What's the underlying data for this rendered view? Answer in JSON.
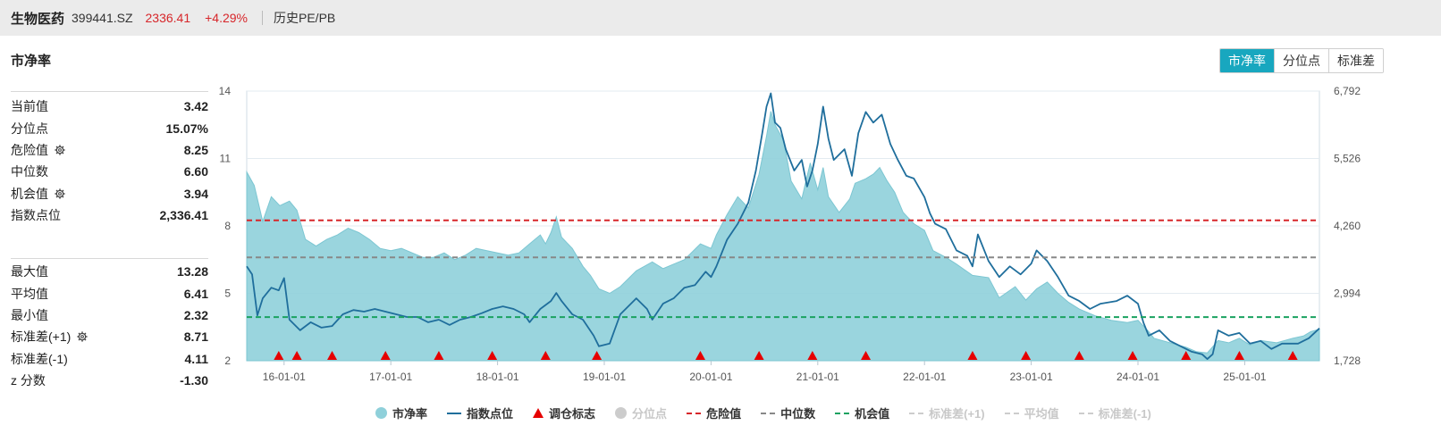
{
  "header": {
    "name": "生物医药",
    "code": "399441.SZ",
    "price": "2336.41",
    "change": "+4.29%",
    "history_label": "历史PE/PB"
  },
  "section_title": "市净率",
  "tabs": [
    {
      "label": "市净率",
      "active": true
    },
    {
      "label": "分位点",
      "active": false
    },
    {
      "label": "标准差",
      "active": false
    }
  ],
  "stats_top": [
    {
      "label": "当前值",
      "value": "3.42",
      "gear": false
    },
    {
      "label": "分位点",
      "value": "15.07%",
      "gear": false
    },
    {
      "label": "危险值",
      "value": "8.25",
      "gear": true
    },
    {
      "label": "中位数",
      "value": "6.60",
      "gear": false
    },
    {
      "label": "机会值",
      "value": "3.94",
      "gear": true
    },
    {
      "label": "指数点位",
      "value": "2,336.41",
      "gear": false
    }
  ],
  "stats_bottom": [
    {
      "label": "最大值",
      "value": "13.28",
      "gear": false
    },
    {
      "label": "平均值",
      "value": "6.41",
      "gear": false
    },
    {
      "label": "最小值",
      "value": "2.32",
      "gear": false
    },
    {
      "label": "标准差(+1)",
      "value": "8.71",
      "gear": true
    },
    {
      "label": "标准差(-1)",
      "value": "4.11",
      "gear": false
    },
    {
      "label": "z 分数",
      "value": "-1.30",
      "gear": false
    }
  ],
  "legend": [
    {
      "label": "市净率",
      "kind": "dot",
      "color": "#8fd0da",
      "off": false
    },
    {
      "label": "指数点位",
      "kind": "line",
      "color": "#1f6e9c",
      "off": false
    },
    {
      "label": "调仓标志",
      "kind": "tri",
      "color": "#e60000",
      "off": false
    },
    {
      "label": "分位点",
      "kind": "dot",
      "color": "#cccccc",
      "off": true
    },
    {
      "label": "危险值",
      "kind": "dash",
      "color": "#d7262a",
      "off": false
    },
    {
      "label": "中位数",
      "kind": "dash",
      "color": "#888888",
      "off": false
    },
    {
      "label": "机会值",
      "kind": "dash",
      "color": "#1aa260",
      "off": false
    },
    {
      "label": "标准差(+1)",
      "kind": "dash",
      "color": "#cccccc",
      "off": true
    },
    {
      "label": "平均值",
      "kind": "dash",
      "color": "#cccccc",
      "off": true
    },
    {
      "label": "标准差(-1)",
      "kind": "dash",
      "color": "#cccccc",
      "off": true
    }
  ],
  "chart_data": {
    "type": "area",
    "x_tick_labels": [
      "16-01-01",
      "17-01-01",
      "18-01-01",
      "19-01-01",
      "20-01-01",
      "21-01-01",
      "22-01-01",
      "23-01-01",
      "24-01-01",
      "25-01-01"
    ],
    "x_tick_years": [
      2016,
      2017,
      2018,
      2019,
      2020,
      2021,
      2022,
      2023,
      2024,
      2025
    ],
    "x_range": [
      2015.65,
      2025.7
    ],
    "left_axis": {
      "ticks": [
        "14",
        "11",
        "8",
        "5",
        "2"
      ],
      "values": [
        14,
        11,
        8,
        5,
        2
      ],
      "range": [
        2,
        14
      ]
    },
    "right_axis": {
      "ticks": [
        "6,792",
        "5,526",
        "4,260",
        "2,994",
        "1,728"
      ],
      "values": [
        6792,
        5526,
        4260,
        2994,
        1728
      ],
      "range": [
        1728,
        6792
      ]
    },
    "reference_lines": [
      {
        "name": "危险值",
        "value": 8.25,
        "color": "#d7262a"
      },
      {
        "name": "中位数",
        "value": 6.6,
        "color": "#888888"
      },
      {
        "name": "机会值",
        "value": 3.94,
        "color": "#1aa260"
      }
    ],
    "series": [
      {
        "name": "市净率",
        "kind": "area",
        "color": "#8fd0da",
        "axis": "left",
        "points": [
          [
            2015.65,
            10.4
          ],
          [
            2015.72,
            9.8
          ],
          [
            2015.8,
            8.2
          ],
          [
            2015.88,
            9.3
          ],
          [
            2015.96,
            8.9
          ],
          [
            2016.05,
            9.1
          ],
          [
            2016.12,
            8.7
          ],
          [
            2016.2,
            7.4
          ],
          [
            2016.3,
            7.1
          ],
          [
            2016.4,
            7.4
          ],
          [
            2016.5,
            7.6
          ],
          [
            2016.6,
            7.9
          ],
          [
            2016.7,
            7.7
          ],
          [
            2016.8,
            7.4
          ],
          [
            2016.9,
            7.0
          ],
          [
            2017.0,
            6.9
          ],
          [
            2017.1,
            7.0
          ],
          [
            2017.2,
            6.8
          ],
          [
            2017.3,
            6.6
          ],
          [
            2017.4,
            6.6
          ],
          [
            2017.5,
            6.8
          ],
          [
            2017.6,
            6.5
          ],
          [
            2017.7,
            6.7
          ],
          [
            2017.8,
            7.0
          ],
          [
            2017.9,
            6.9
          ],
          [
            2018.0,
            6.8
          ],
          [
            2018.1,
            6.7
          ],
          [
            2018.2,
            6.8
          ],
          [
            2018.3,
            7.2
          ],
          [
            2018.4,
            7.6
          ],
          [
            2018.45,
            7.2
          ],
          [
            2018.5,
            7.7
          ],
          [
            2018.55,
            8.4
          ],
          [
            2018.6,
            7.5
          ],
          [
            2018.7,
            7.0
          ],
          [
            2018.8,
            6.2
          ],
          [
            2018.87,
            5.8
          ],
          [
            2018.95,
            5.2
          ],
          [
            2019.05,
            5.0
          ],
          [
            2019.15,
            5.3
          ],
          [
            2019.3,
            6.0
          ],
          [
            2019.45,
            6.4
          ],
          [
            2019.55,
            6.1
          ],
          [
            2019.65,
            6.3
          ],
          [
            2019.75,
            6.5
          ],
          [
            2019.9,
            7.2
          ],
          [
            2020.0,
            7.0
          ],
          [
            2020.05,
            7.6
          ],
          [
            2020.15,
            8.5
          ],
          [
            2020.25,
            9.3
          ],
          [
            2020.35,
            8.8
          ],
          [
            2020.45,
            10.3
          ],
          [
            2020.52,
            12.0
          ],
          [
            2020.56,
            13.1
          ],
          [
            2020.6,
            12.5
          ],
          [
            2020.68,
            11.8
          ],
          [
            2020.75,
            10.0
          ],
          [
            2020.85,
            9.2
          ],
          [
            2020.93,
            10.8
          ],
          [
            2021.0,
            9.6
          ],
          [
            2021.05,
            10.6
          ],
          [
            2021.1,
            9.3
          ],
          [
            2021.2,
            8.6
          ],
          [
            2021.3,
            9.2
          ],
          [
            2021.35,
            9.9
          ],
          [
            2021.45,
            10.1
          ],
          [
            2021.52,
            10.3
          ],
          [
            2021.58,
            10.6
          ],
          [
            2021.65,
            10.0
          ],
          [
            2021.72,
            9.5
          ],
          [
            2021.8,
            8.6
          ],
          [
            2021.9,
            8.1
          ],
          [
            2022.0,
            7.8
          ],
          [
            2022.08,
            6.9
          ],
          [
            2022.2,
            6.6
          ],
          [
            2022.3,
            6.3
          ],
          [
            2022.45,
            5.8
          ],
          [
            2022.6,
            5.7
          ],
          [
            2022.7,
            4.8
          ],
          [
            2022.85,
            5.3
          ],
          [
            2022.95,
            4.7
          ],
          [
            2023.05,
            5.2
          ],
          [
            2023.15,
            5.5
          ],
          [
            2023.25,
            5.0
          ],
          [
            2023.35,
            4.6
          ],
          [
            2023.45,
            4.3
          ],
          [
            2023.6,
            4.0
          ],
          [
            2023.75,
            3.8
          ],
          [
            2023.9,
            3.7
          ],
          [
            2024.0,
            3.8
          ],
          [
            2024.1,
            3.3
          ],
          [
            2024.15,
            3.0
          ],
          [
            2024.3,
            2.8
          ],
          [
            2024.45,
            2.6
          ],
          [
            2024.55,
            2.4
          ],
          [
            2024.65,
            2.35
          ],
          [
            2024.75,
            2.9
          ],
          [
            2024.85,
            2.8
          ],
          [
            2024.95,
            3.0
          ],
          [
            2025.05,
            2.7
          ],
          [
            2025.15,
            2.9
          ],
          [
            2025.3,
            2.8
          ],
          [
            2025.45,
            3.0
          ],
          [
            2025.55,
            3.1
          ],
          [
            2025.62,
            3.3
          ],
          [
            2025.7,
            3.4
          ]
        ]
      },
      {
        "name": "指数点位",
        "kind": "line",
        "color": "#1f6e9c",
        "axis": "right",
        "points": [
          [
            2015.65,
            3500
          ],
          [
            2015.7,
            3350
          ],
          [
            2015.75,
            2580
          ],
          [
            2015.8,
            2900
          ],
          [
            2015.88,
            3100
          ],
          [
            2015.95,
            3050
          ],
          [
            2016.0,
            3280
          ],
          [
            2016.05,
            2500
          ],
          [
            2016.15,
            2300
          ],
          [
            2016.25,
            2450
          ],
          [
            2016.35,
            2350
          ],
          [
            2016.45,
            2380
          ],
          [
            2016.55,
            2600
          ],
          [
            2016.65,
            2680
          ],
          [
            2016.75,
            2650
          ],
          [
            2016.85,
            2700
          ],
          [
            2016.95,
            2650
          ],
          [
            2017.05,
            2600
          ],
          [
            2017.15,
            2550
          ],
          [
            2017.25,
            2550
          ],
          [
            2017.35,
            2450
          ],
          [
            2017.45,
            2500
          ],
          [
            2017.55,
            2400
          ],
          [
            2017.65,
            2500
          ],
          [
            2017.75,
            2550
          ],
          [
            2017.85,
            2620
          ],
          [
            2017.95,
            2700
          ],
          [
            2018.05,
            2750
          ],
          [
            2018.15,
            2700
          ],
          [
            2018.25,
            2600
          ],
          [
            2018.3,
            2450
          ],
          [
            2018.4,
            2700
          ],
          [
            2018.5,
            2850
          ],
          [
            2018.55,
            3000
          ],
          [
            2018.6,
            2850
          ],
          [
            2018.7,
            2600
          ],
          [
            2018.8,
            2500
          ],
          [
            2018.9,
            2200
          ],
          [
            2018.95,
            2000
          ],
          [
            2019.05,
            2050
          ],
          [
            2019.15,
            2600
          ],
          [
            2019.3,
            2900
          ],
          [
            2019.4,
            2700
          ],
          [
            2019.45,
            2500
          ],
          [
            2019.55,
            2800
          ],
          [
            2019.65,
            2900
          ],
          [
            2019.75,
            3100
          ],
          [
            2019.85,
            3150
          ],
          [
            2019.95,
            3400
          ],
          [
            2020.0,
            3300
          ],
          [
            2020.05,
            3500
          ],
          [
            2020.15,
            4000
          ],
          [
            2020.25,
            4300
          ],
          [
            2020.35,
            4700
          ],
          [
            2020.42,
            5300
          ],
          [
            2020.48,
            6000
          ],
          [
            2020.52,
            6500
          ],
          [
            2020.56,
            6750
          ],
          [
            2020.6,
            6200
          ],
          [
            2020.65,
            6100
          ],
          [
            2020.7,
            5700
          ],
          [
            2020.78,
            5300
          ],
          [
            2020.85,
            5500
          ],
          [
            2020.9,
            5000
          ],
          [
            2020.95,
            5300
          ],
          [
            2021.0,
            5800
          ],
          [
            2021.05,
            6500
          ],
          [
            2021.1,
            5900
          ],
          [
            2021.15,
            5500
          ],
          [
            2021.25,
            5700
          ],
          [
            2021.32,
            5200
          ],
          [
            2021.38,
            6000
          ],
          [
            2021.45,
            6400
          ],
          [
            2021.52,
            6200
          ],
          [
            2021.6,
            6350
          ],
          [
            2021.68,
            5800
          ],
          [
            2021.75,
            5500
          ],
          [
            2021.83,
            5200
          ],
          [
            2021.9,
            5150
          ],
          [
            2022.0,
            4800
          ],
          [
            2022.05,
            4500
          ],
          [
            2022.1,
            4300
          ],
          [
            2022.2,
            4200
          ],
          [
            2022.3,
            3800
          ],
          [
            2022.4,
            3700
          ],
          [
            2022.45,
            3500
          ],
          [
            2022.5,
            4100
          ],
          [
            2022.6,
            3600
          ],
          [
            2022.7,
            3300
          ],
          [
            2022.8,
            3500
          ],
          [
            2022.9,
            3350
          ],
          [
            2023.0,
            3550
          ],
          [
            2023.05,
            3800
          ],
          [
            2023.15,
            3600
          ],
          [
            2023.25,
            3300
          ],
          [
            2023.35,
            2950
          ],
          [
            2023.45,
            2850
          ],
          [
            2023.55,
            2700
          ],
          [
            2023.65,
            2800
          ],
          [
            2023.8,
            2850
          ],
          [
            2023.9,
            2950
          ],
          [
            2024.0,
            2800
          ],
          [
            2024.05,
            2450
          ],
          [
            2024.1,
            2200
          ],
          [
            2024.2,
            2300
          ],
          [
            2024.3,
            2100
          ],
          [
            2024.4,
            2000
          ],
          [
            2024.5,
            1900
          ],
          [
            2024.6,
            1850
          ],
          [
            2024.65,
            1760
          ],
          [
            2024.7,
            1850
          ],
          [
            2024.75,
            2300
          ],
          [
            2024.85,
            2200
          ],
          [
            2024.95,
            2250
          ],
          [
            2025.05,
            2050
          ],
          [
            2025.15,
            2100
          ],
          [
            2025.25,
            1950
          ],
          [
            2025.35,
            2050
          ],
          [
            2025.5,
            2050
          ],
          [
            2025.6,
            2150
          ],
          [
            2025.7,
            2336
          ]
        ]
      }
    ],
    "rebalance_markers": [
      2015.95,
      2016.12,
      2016.45,
      2016.95,
      2017.45,
      2017.95,
      2018.45,
      2018.93,
      2019.9,
      2020.45,
      2020.95,
      2021.45,
      2022.45,
      2022.95,
      2023.45,
      2023.95,
      2024.45,
      2024.95,
      2025.45
    ]
  }
}
